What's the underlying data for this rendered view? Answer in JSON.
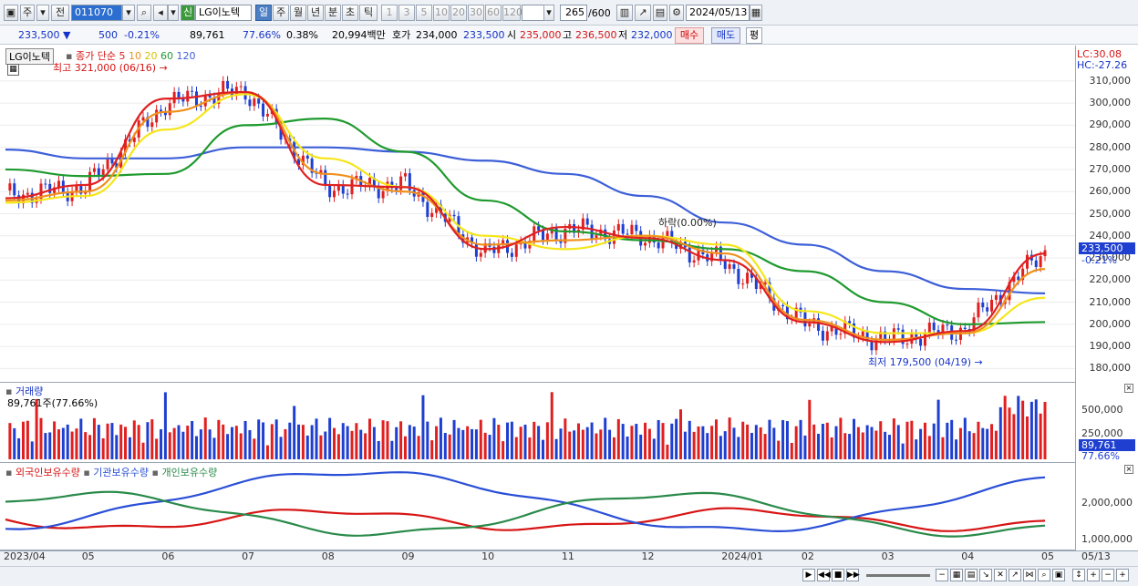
{
  "toolbar": {
    "market": "주",
    "prev_label": "전",
    "code": "011070",
    "new_badge": "신",
    "stock_name": "LG이노텍",
    "periods": [
      "일",
      "주",
      "월",
      "년",
      "분",
      "초",
      "틱"
    ],
    "counts": [
      "1",
      "3",
      "5",
      "10",
      "20",
      "30",
      "60",
      "120"
    ],
    "view_count": "265",
    "view_total": "/600",
    "date": "2024/05/13"
  },
  "quote": {
    "price": "233,500",
    "change": "500",
    "change_pct": "-0.21%",
    "volume": "89,761",
    "volume_ratio": "77.66%",
    "turnover": "0.38%",
    "amount": "20,994백만",
    "ask_label": "호가",
    "ask": "234,000",
    "bid": "233,500",
    "open_label": "시",
    "open": "235,000",
    "high_label": "고",
    "high": "236,500",
    "low_label": "저",
    "low": "232,000",
    "buy_label": "매수",
    "sell_label": "매도",
    "eval_label": "평"
  },
  "price_panel": {
    "name_tag": "LG이노텍",
    "ma_label": "종가 단순",
    "ma_periods": [
      "5",
      "10",
      "20",
      "60",
      "120"
    ],
    "max_label": "최고 321,000 (06/16)",
    "min_label": "최저 179,500 (04/19)",
    "cross_label": "하락(0.00%)",
    "lc": "LC:30.08",
    "hc": "HC:-27.26",
    "ticks": [
      "310,000",
      "300,000",
      "290,000",
      "280,000",
      "270,000",
      "260,000",
      "250,000",
      "240,000",
      "230,000",
      "220,000",
      "210,000",
      "200,000",
      "190,000",
      "180,000"
    ],
    "last_price": "233,500",
    "last_pct": "-0.21%"
  },
  "volume_panel": {
    "title": "거래량",
    "current": "89,761주(77.66%)",
    "ticks": [
      "500,000",
      "250,000"
    ],
    "last": "89,761",
    "last_pct": "77.66%"
  },
  "holdings_panel": {
    "foreign": "외국인보유수량",
    "institution": "기관보유수량",
    "individual": "개인보유수량",
    "ticks": [
      "2,000,000",
      "1,000,000"
    ]
  },
  "x_axis": [
    "2023/04",
    "05",
    "06",
    "07",
    "08",
    "09",
    "10",
    "11",
    "12",
    "2024/01",
    "02",
    "03",
    "04",
    "05"
  ],
  "x_axis_right": "05/13",
  "colors": {
    "up": "#e02020",
    "down": "#1e3fd0",
    "ma5": "#e02020",
    "ma10": "#f0901c",
    "ma20": "#f5e61a",
    "ma60": "#1f9a2e",
    "ma120": "#3d5fd8"
  },
  "chart_data": {
    "type": "line",
    "title": "LG이노텍",
    "ylim": [
      174000,
      326000
    ],
    "x": [
      "2023/04",
      "05",
      "06",
      "07",
      "08",
      "09",
      "10",
      "11",
      "12",
      "2024/01",
      "02",
      "03",
      "04",
      "05"
    ],
    "series": [
      {
        "name": "종가",
        "values": [
          258000,
          262000,
          300000,
          306000,
          262000,
          263000,
          232000,
          243000,
          240000,
          228000,
          200000,
          193000,
          198000,
          233500
        ]
      },
      {
        "name": "5",
        "values": [
          257000,
          263000,
          302000,
          305000,
          263000,
          262000,
          234000,
          244000,
          239000,
          229000,
          201000,
          192000,
          197000,
          232000
        ]
      },
      {
        "name": "10",
        "values": [
          256000,
          260000,
          296000,
          305000,
          268000,
          260000,
          236000,
          238000,
          240000,
          232000,
          202000,
          193000,
          196000,
          225000
        ]
      },
      {
        "name": "20",
        "values": [
          255000,
          258000,
          288000,
          304000,
          275000,
          262000,
          240000,
          234000,
          240000,
          236000,
          206000,
          196000,
          196000,
          212000
        ]
      },
      {
        "name": "60",
        "values": [
          270000,
          267000,
          268000,
          290000,
          293000,
          278000,
          256000,
          242000,
          238000,
          234000,
          224000,
          210000,
          200000,
          201000
        ]
      },
      {
        "name": "120",
        "values": [
          279000,
          275000,
          275000,
          280000,
          280000,
          278000,
          274000,
          268000,
          258000,
          246000,
          236000,
          224000,
          216000,
          214000
        ]
      }
    ]
  }
}
